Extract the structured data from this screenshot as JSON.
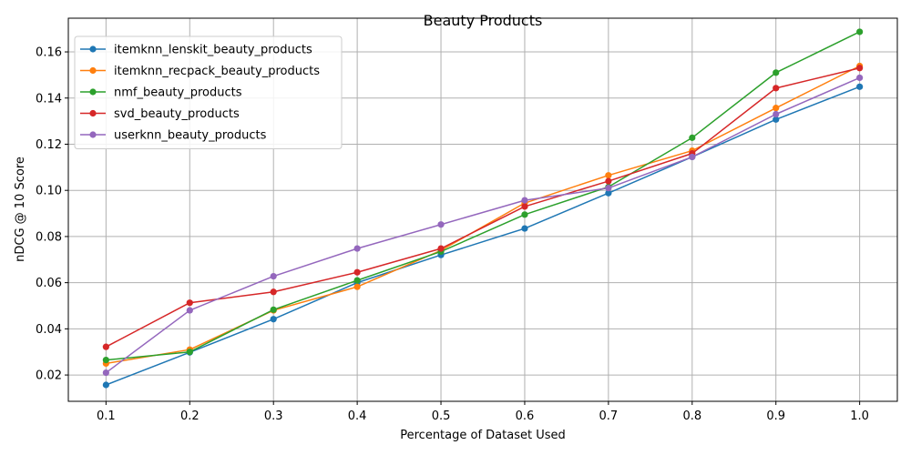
{
  "chart_data": {
    "type": "line",
    "title": "Beauty Products",
    "xlabel": "Percentage of Dataset Used",
    "ylabel": "nDCG @ 10 Score",
    "x": [
      0.1,
      0.2,
      0.3,
      0.4,
      0.5,
      0.6,
      0.7,
      0.8,
      0.9,
      1.0
    ],
    "x_tick_labels": [
      "0.1",
      "0.2",
      "0.3",
      "0.4",
      "0.5",
      "0.6",
      "0.7",
      "0.8",
      "0.9",
      "1.0"
    ],
    "y_ticks": [
      0.02,
      0.04,
      0.06,
      0.08,
      0.1,
      0.12,
      0.14,
      0.16
    ],
    "y_tick_labels": [
      "0.02",
      "0.04",
      "0.06",
      "0.08",
      "0.10",
      "0.12",
      "0.14",
      "0.16"
    ],
    "xlim": [
      0.055,
      1.045
    ],
    "ylim": [
      0.0086,
      0.1746
    ],
    "grid": true,
    "legend_position": "upper-left",
    "series": [
      {
        "name": "itemknn_lenskit_beauty_products",
        "color": "#1f77b4",
        "values": [
          0.0157,
          0.0298,
          0.0442,
          0.06,
          0.072,
          0.0835,
          0.0988,
          0.1145,
          0.1307,
          0.1449
        ]
      },
      {
        "name": "itemknn_recpack_beauty_products",
        "color": "#ff7f0e",
        "values": [
          0.025,
          0.031,
          0.048,
          0.0582,
          0.074,
          0.0945,
          0.1065,
          0.1172,
          0.1357,
          0.1539
        ]
      },
      {
        "name": "nmf_beauty_products",
        "color": "#2ca02c",
        "values": [
          0.0265,
          0.03,
          0.0483,
          0.061,
          0.0735,
          0.0895,
          0.1015,
          0.1228,
          0.151,
          0.1687
        ]
      },
      {
        "name": "svd_beauty_products",
        "color": "#d62728",
        "values": [
          0.0322,
          0.0513,
          0.056,
          0.0645,
          0.0748,
          0.093,
          0.104,
          0.116,
          0.1443,
          0.153
        ]
      },
      {
        "name": "userknn_beauty_products",
        "color": "#9467bd",
        "values": [
          0.021,
          0.048,
          0.0628,
          0.0748,
          0.0852,
          0.0957,
          0.101,
          0.1145,
          0.133,
          0.1488
        ]
      }
    ]
  }
}
